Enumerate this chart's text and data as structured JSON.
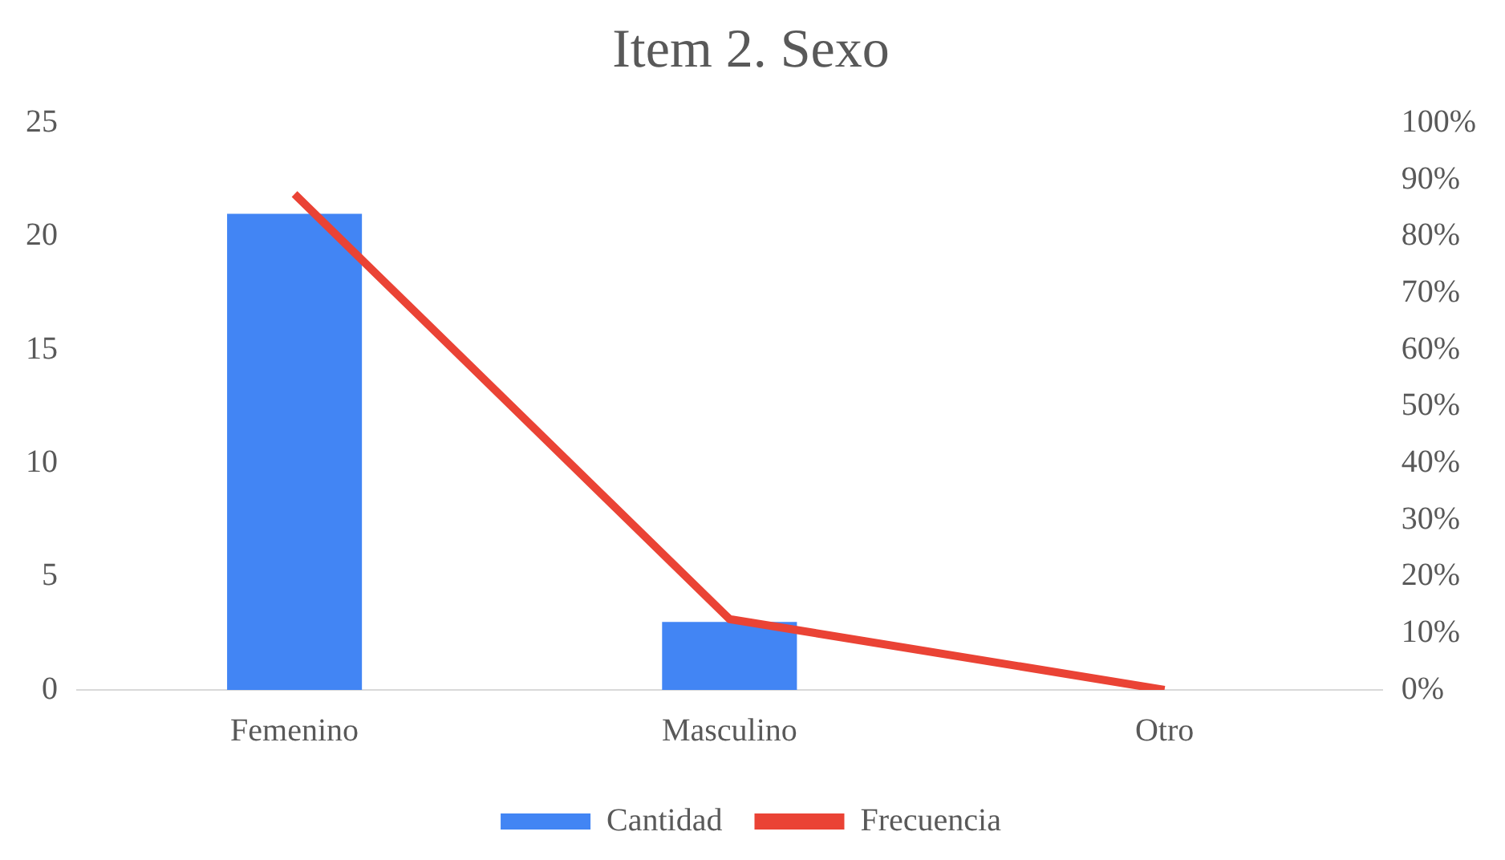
{
  "chart_data": {
    "type": "bar",
    "title": "Item 2. Sexo",
    "categories": [
      "Femenino",
      "Masculino",
      "Otro"
    ],
    "series": [
      {
        "name": "Cantidad",
        "color": "#4285f4",
        "values": [
          21,
          3,
          0
        ]
      },
      {
        "name": "Frecuencia",
        "type": "line",
        "axis": "y2",
        "color": "#ea4335",
        "values": [
          87.5,
          12.5,
          0
        ]
      }
    ],
    "ylim": [
      0,
      25
    ],
    "yticks": [
      0,
      5,
      10,
      15,
      20,
      25
    ],
    "y2lim": [
      0,
      100
    ],
    "y2ticks": [
      {
        "value": 0,
        "label": "0%"
      },
      {
        "value": 10,
        "label": "10%"
      },
      {
        "value": 20,
        "label": "20%"
      },
      {
        "value": 30,
        "label": "30%"
      },
      {
        "value": 40,
        "label": "40%"
      },
      {
        "value": 50,
        "label": "50%"
      },
      {
        "value": 60,
        "label": "60%"
      },
      {
        "value": 70,
        "label": "70%"
      },
      {
        "value": 80,
        "label": "80%"
      },
      {
        "value": 90,
        "label": "90%"
      },
      {
        "value": 100,
        "label": "100%"
      }
    ],
    "grid": false,
    "legend": "bottom",
    "marker": "none"
  }
}
